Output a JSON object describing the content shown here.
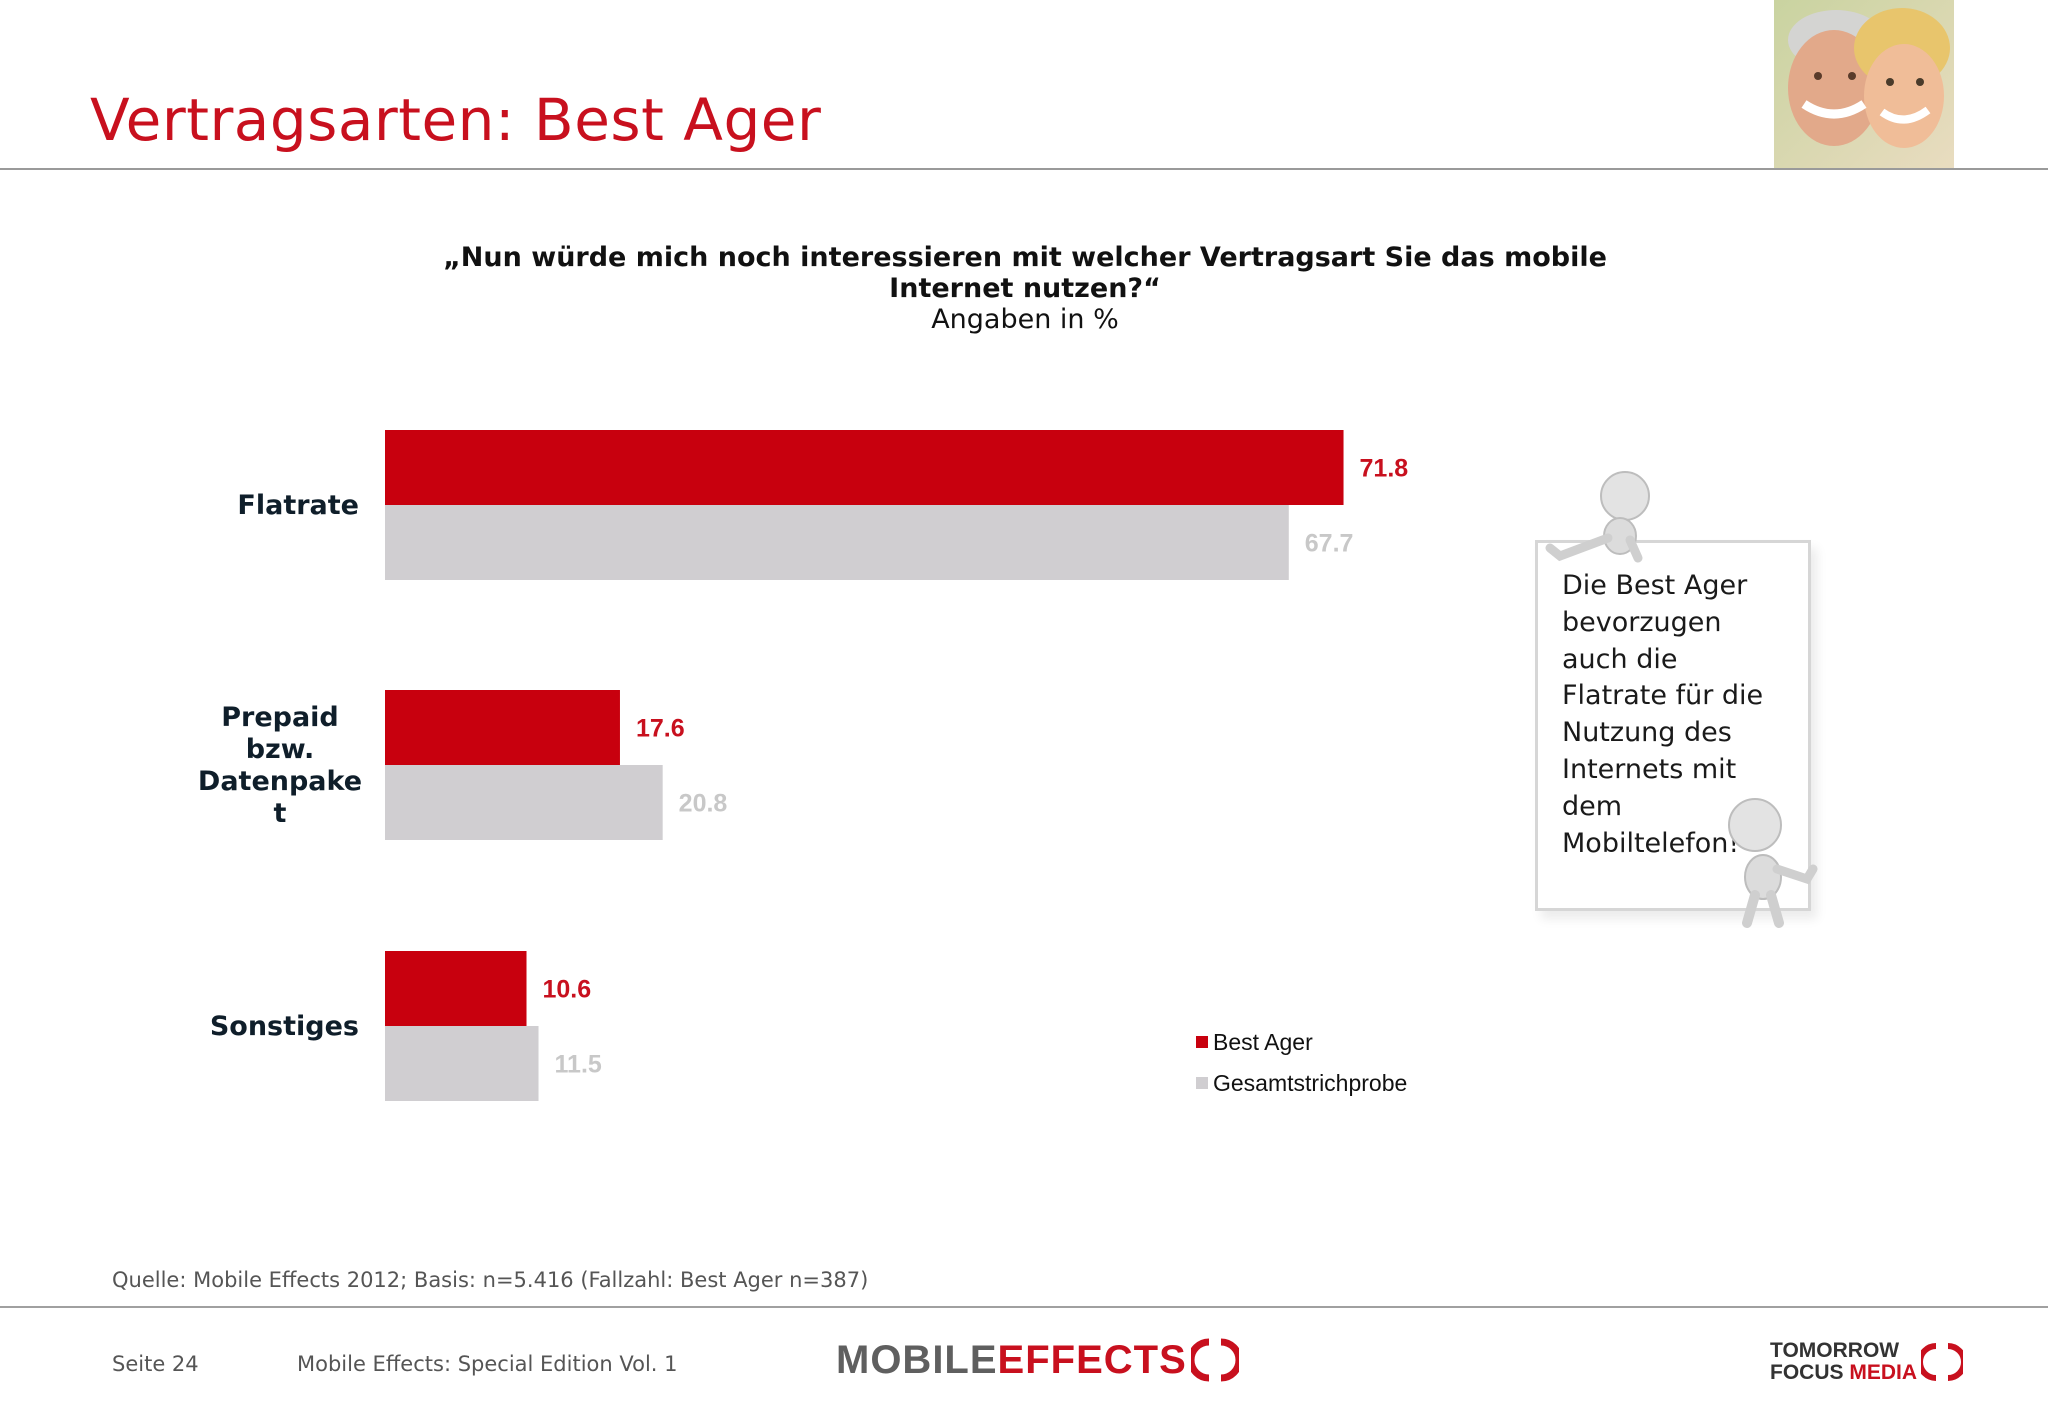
{
  "title": "Vertragsarten: Best Ager",
  "question": {
    "line1": "„Nun würde mich noch interessieren mit welcher Vertragsart Sie das mobile",
    "line2": "Internet nutzen?“",
    "unit": "Angaben in %"
  },
  "chart_data": {
    "type": "bar",
    "orientation": "horizontal",
    "categories": [
      [
        "Flatrate"
      ],
      [
        "Prepaid",
        "bzw.",
        "Datenpake",
        "t"
      ],
      [
        "Sonstiges"
      ]
    ],
    "series": [
      {
        "name": "Best Ager",
        "values": [
          71.8,
          17.6,
          10.6
        ],
        "color": "#c8000e",
        "label_color": "#c8101e"
      },
      {
        "name": "Gesamtstrichprobe",
        "values": [
          67.7,
          20.8,
          11.5
        ],
        "color": "#d0ced1",
        "label_color": "#c8c8c8"
      }
    ],
    "xlim": [
      0,
      100
    ],
    "grid": false,
    "legend": "bottom-right"
  },
  "callout": {
    "lines": [
      "Die Best Ager",
      "bevorzugen",
      "auch die",
      "Flatrate für die",
      "Nutzung des",
      "Internets mit",
      "dem",
      "Mobiltelefon!"
    ]
  },
  "source": "Quelle: Mobile Effects 2012; Basis: n=5.416 (Fallzahl: Best Ager n=387)",
  "footer": {
    "page": "Seite 24",
    "publication": "Mobile Effects: Special Edition Vol. 1",
    "logo_left_a": "MOBILE",
    "logo_left_b": "EFFECTS",
    "logo_right_line1": "TOMORROW",
    "logo_right_line2a": "FOCUS",
    "logo_right_line2b": "MEDIA"
  },
  "colors": {
    "brand_red": "#c8101e",
    "grey_bar": "#d0ced1"
  }
}
